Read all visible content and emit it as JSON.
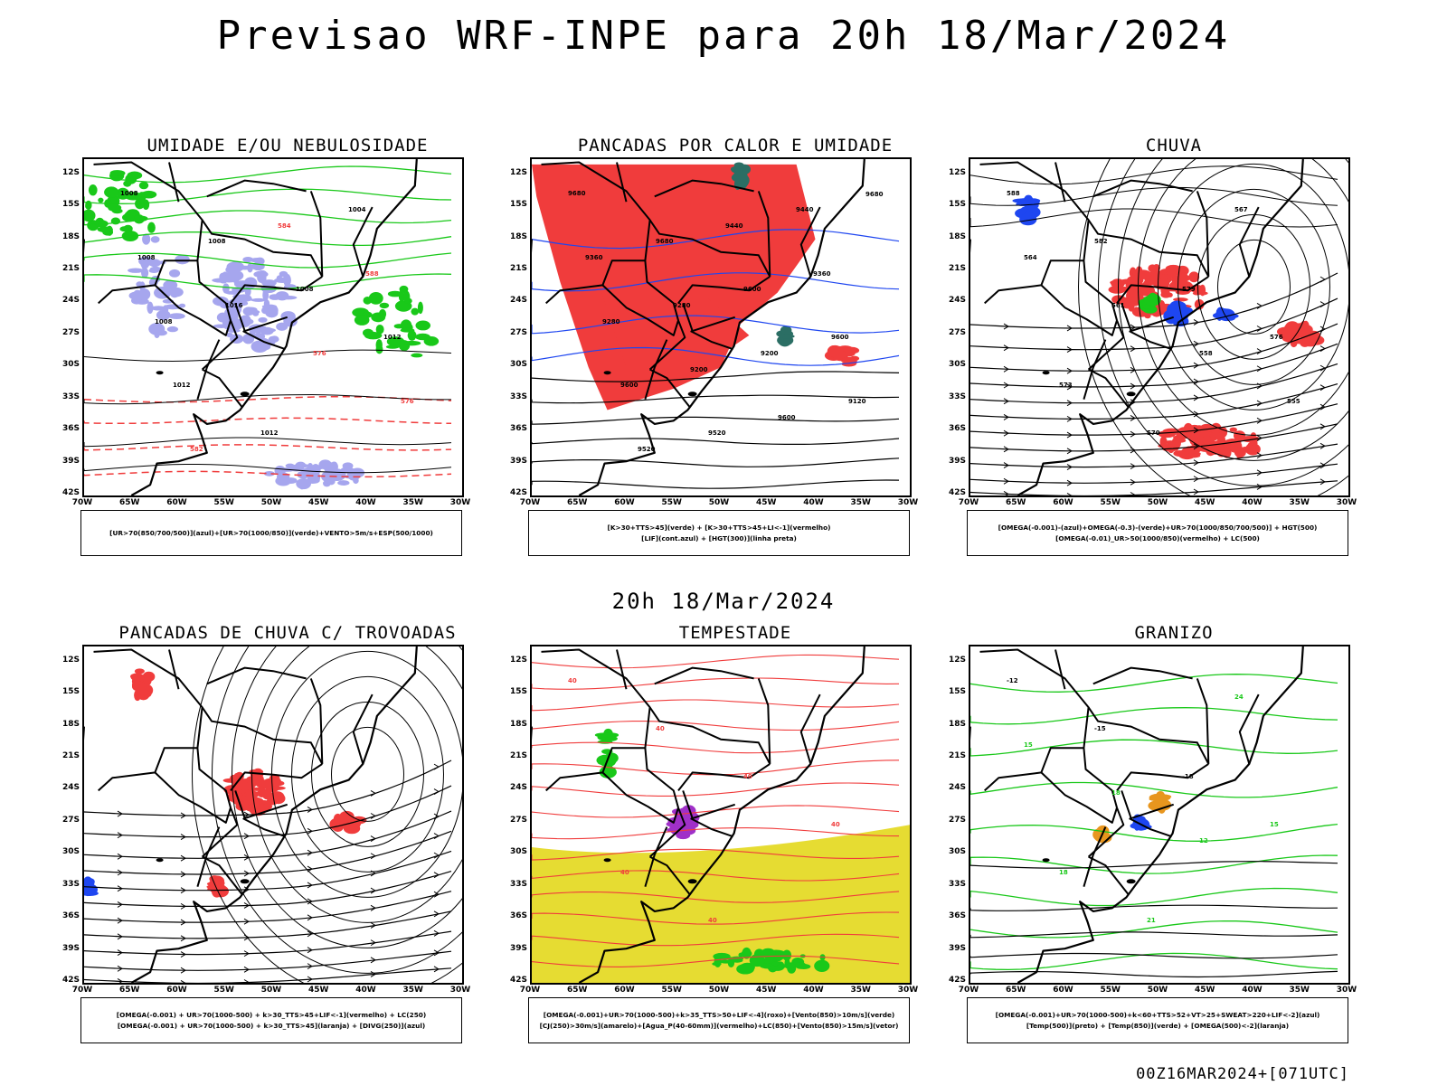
{
  "title": "Previsao WRF-INPE  para 20h 18/Mar/2024",
  "subtitle": "20h 18/Mar/2024",
  "footer": "00Z16MAR2024+[071UTC]",
  "axis": {
    "lat_labels": [
      "12S",
      "15S",
      "18S",
      "21S",
      "24S",
      "27S",
      "30S",
      "33S",
      "36S",
      "39S",
      "42S"
    ],
    "lon_labels": [
      "70W",
      "65W",
      "60W",
      "55W",
      "50W",
      "45W",
      "40W",
      "35W",
      "30W"
    ]
  },
  "colors": {
    "red": "#f03c3c",
    "green": "#19c819",
    "blue": "#1e46f0",
    "lavender": "#a6a6ee",
    "yellow": "#e6dc32",
    "teal": "#2b6e64",
    "purple": "#a030c8",
    "orange": "#e8961e"
  },
  "panels": [
    {
      "title": "UMIDADE E/OU NEBULOSIDADE",
      "legend": [
        "[UR>70(850/700/500)](azul)+[UR>70(1000/850)](verde)+VENTO>5m/s+ESP(500/1000)"
      ],
      "labels": [
        "1008",
        "1008",
        "1008",
        "1012",
        "1012",
        "1012",
        "1004",
        "1008",
        "1016",
        "576",
        "576",
        "582",
        "584",
        "588",
        "1008"
      ]
    },
    {
      "title": "PANCADAS POR CALOR E UMIDADE",
      "legend": [
        "[K>30+TTS>45](verde) + [K>30+TTS>45+LI<-1](vermelho)",
        "[LIF](cont.azul) + [HGT(300)](linha preta)"
      ],
      "labels": [
        "9680",
        "9680",
        "9600",
        "9600",
        "9600",
        "9520",
        "9440",
        "9360",
        "9280",
        "9200",
        "9120",
        "9520",
        "9440",
        "9360",
        "9280",
        "9200",
        "9600",
        "9680"
      ]
    },
    {
      "title": "CHUVA",
      "legend": [
        "[OMEGA(-0.001)-(azul)+OMEGA(-0.3)-(verde)+UR>70(1000/850/700/500)] + HGT(500)",
        "[OMEGA(-0.01)_UR>50(1000/850)(vermelho) + LC(500)"
      ],
      "labels": [
        "588",
        "582",
        "579",
        "576",
        "573",
        "570",
        "567",
        "564",
        "561",
        "558",
        "555"
      ]
    },
    {
      "title": "PANCADAS DE CHUVA C/ TROVOADAS",
      "legend": [
        "[OMEGA(-0.001) + UR>70(1000-500) + k>30_TTS>45+LIF<-1](vermelho) + LC(250)",
        "[OMEGA(-0.001) + UR>70(1000-500) + k>30_TTS>45](laranja) + [DIVG(250)](azul)"
      ],
      "labels": []
    },
    {
      "title": "TEMPESTADE",
      "legend": [
        "[OMEGA(-0.001)+UR>70(1000-500)+k>35_TTS>50+LIF<-4](roxo)+[Vento(850)>10m/s](verde)",
        "[CJ(250)>30m/s](amarelo)+[Agua_P(40-60mm)](vermelho)+LC(850)+[Vento(850)>15m/s](vetor)"
      ],
      "labels": [
        "40",
        "40",
        "40",
        "40",
        "40",
        "40"
      ]
    },
    {
      "title": "GRANIZO",
      "legend": [
        "[OMEGA(-0.001)+UR>70(1000-500)+k<60+TTS>52+VT>25+SWEAT>220+LIF<-2](azul)",
        "[Temp(500)](preto) + [Temp(850)](verde) + [OMEGA(500)<-2](laranja)"
      ],
      "labels": [
        "-12",
        "-15",
        "-18",
        "15",
        "18",
        "21",
        "24",
        "15",
        "18",
        "12"
      ]
    }
  ]
}
